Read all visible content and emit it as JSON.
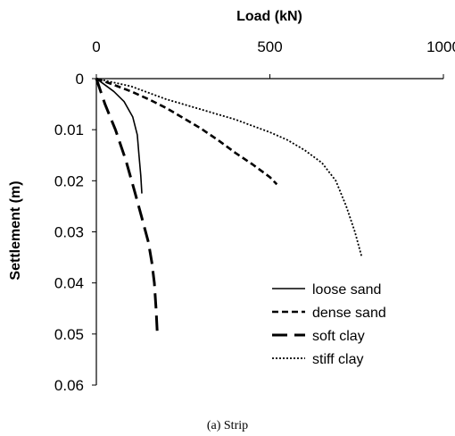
{
  "chart_data": {
    "type": "line",
    "xlabel": "Load (kN)",
    "ylabel": "Settlement (m)",
    "xlim": [
      0,
      1000
    ],
    "ylim": [
      0,
      0.06
    ],
    "x_axis_position": "top",
    "y_axis_inverted": true,
    "x_ticks": [
      "0",
      "500",
      "1000"
    ],
    "y_ticks": [
      "0",
      "0.01",
      "0.02",
      "0.03",
      "0.04",
      "0.05",
      "0.06"
    ],
    "grid": false,
    "legend_position": "bottom-right",
    "caption": "(a) Strip",
    "series": [
      {
        "name": "loose sand",
        "style": "solid",
        "color": "#000000",
        "points": [
          [
            0,
            0
          ],
          [
            20,
            0.001
          ],
          [
            50,
            0.0025
          ],
          [
            80,
            0.0045
          ],
          [
            105,
            0.0075
          ],
          [
            118,
            0.011
          ],
          [
            123,
            0.015
          ],
          [
            128,
            0.019
          ],
          [
            131,
            0.0225
          ]
        ]
      },
      {
        "name": "dense sand",
        "style": "dashed",
        "color": "#000000",
        "points": [
          [
            0,
            0
          ],
          [
            50,
            0.0012
          ],
          [
            100,
            0.0025
          ],
          [
            150,
            0.004
          ],
          [
            200,
            0.0057
          ],
          [
            250,
            0.0077
          ],
          [
            300,
            0.0097
          ],
          [
            350,
            0.012
          ],
          [
            400,
            0.0145
          ],
          [
            450,
            0.0168
          ],
          [
            500,
            0.0193
          ],
          [
            520,
            0.0207
          ]
        ]
      },
      {
        "name": "soft clay",
        "style": "long-dash",
        "color": "#000000",
        "points": [
          [
            0,
            0
          ],
          [
            25,
            0.005
          ],
          [
            55,
            0.01
          ],
          [
            85,
            0.016
          ],
          [
            110,
            0.022
          ],
          [
            130,
            0.027
          ],
          [
            150,
            0.032
          ],
          [
            160,
            0.036
          ],
          [
            167,
            0.04
          ],
          [
            172,
            0.045
          ],
          [
            176,
            0.0505
          ]
        ]
      },
      {
        "name": "stiff clay",
        "style": "dotted",
        "color": "#000000",
        "points": [
          [
            0,
            0
          ],
          [
            100,
            0.0015
          ],
          [
            200,
            0.004
          ],
          [
            300,
            0.006
          ],
          [
            400,
            0.008
          ],
          [
            500,
            0.0105
          ],
          [
            550,
            0.012
          ],
          [
            600,
            0.014
          ],
          [
            650,
            0.0165
          ],
          [
            690,
            0.02
          ],
          [
            720,
            0.025
          ],
          [
            745,
            0.03
          ],
          [
            765,
            0.035
          ]
        ]
      }
    ]
  }
}
